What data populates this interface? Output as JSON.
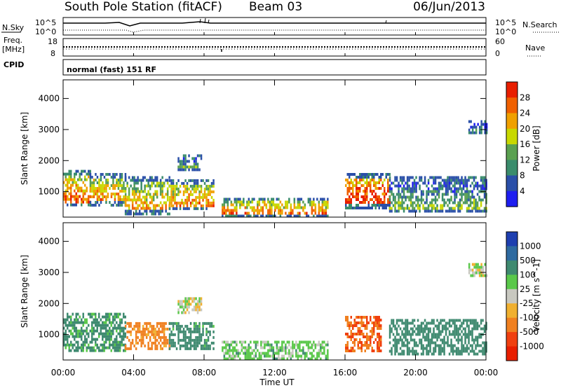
{
  "header": {
    "title": "South Pole Station (fitACF)",
    "beam": "Beam 03",
    "date": "06/Jun/2013"
  },
  "status_panels": {
    "nsky_label": "N.Sky",
    "nsearch_label": "N.Search",
    "noise_ticks": [
      "10^5",
      "10^0"
    ],
    "freq_label": "Freq.",
    "freq_unit": "[MHz]",
    "freq_ticks": [
      "18",
      "8"
    ],
    "nave_label": "Nave",
    "nave_ticks": [
      "60",
      "0"
    ],
    "cpid_label": "CPID",
    "cpid_value": "normal (fast) 151 RF"
  },
  "time_axis": {
    "label": "Time UT",
    "ticks": [
      "00:00",
      "04:00",
      "08:00",
      "12:00",
      "16:00",
      "20:00",
      "00:00"
    ]
  },
  "chart_data": [
    {
      "type": "heatmap",
      "panel": "power",
      "ylabel": "Slant Range [km]",
      "y_ticks": [
        "1000",
        "2000",
        "3000",
        "4000"
      ],
      "ylim": [
        180,
        4600
      ],
      "xlim_hours": [
        0,
        24
      ],
      "colorbar_label": "Power [dB]",
      "colorbar_ticks": [
        "4",
        "8",
        "12",
        "16",
        "20",
        "24",
        "28"
      ],
      "colorbar_colors": [
        "#1e1ef0",
        "#2a4fa8",
        "#3a8c6c",
        "#5aa050",
        "#c8d800",
        "#f0a000",
        "#f06000",
        "#e81e00"
      ],
      "regions": [
        {
          "t": [
            0.0,
            1.5
          ],
          "r": [
            550,
            1700
          ],
          "v": 22
        },
        {
          "t": [
            1.5,
            3.5
          ],
          "r": [
            600,
            1600
          ],
          "v": 20
        },
        {
          "t": [
            3.5,
            6.0
          ],
          "r": [
            300,
            1500
          ],
          "v": 18
        },
        {
          "t": [
            6.0,
            8.5
          ],
          "r": [
            450,
            1400
          ],
          "v": 20
        },
        {
          "t": [
            6.5,
            7.8
          ],
          "r": [
            1700,
            2200
          ],
          "v": 10
        },
        {
          "t": [
            9.0,
            15.0
          ],
          "r": [
            250,
            800
          ],
          "v": 20
        },
        {
          "t": [
            16.0,
            18.5
          ],
          "r": [
            500,
            1600
          ],
          "v": 26
        },
        {
          "t": [
            18.5,
            24.0
          ],
          "r": [
            350,
            1500
          ],
          "v": 10
        },
        {
          "t": [
            23.0,
            24.0
          ],
          "r": [
            2900,
            3300
          ],
          "v": 6
        }
      ]
    },
    {
      "type": "heatmap",
      "panel": "velocity",
      "ylabel": "Slant Range [km]",
      "y_ticks": [
        "1000",
        "2000",
        "3000",
        "4000"
      ],
      "ylim": [
        180,
        4600
      ],
      "xlim_hours": [
        0,
        24
      ],
      "colorbar_label": "Velocity [m s^-1]",
      "colorbar_ticks": [
        "1000",
        "500",
        "100",
        "25",
        "-25",
        "-100",
        "-500",
        "-1000"
      ],
      "colorbar_colors": [
        "#1e3fb0",
        "#2e6aa0",
        "#3f8a70",
        "#5ac84a",
        "#c8c8c0",
        "#f0b030",
        "#f08020",
        "#f04010",
        "#e81e00"
      ],
      "regions": [
        {
          "t": [
            0.0,
            3.5
          ],
          "r": [
            500,
            1700
          ],
          "v": 150
        },
        {
          "t": [
            3.5,
            6.0
          ],
          "r": [
            500,
            1400
          ],
          "v": -200
        },
        {
          "t": [
            6.5,
            7.8
          ],
          "r": [
            1700,
            2200
          ],
          "v": 0
        },
        {
          "t": [
            6.0,
            8.5
          ],
          "r": [
            500,
            1400
          ],
          "v": 200
        },
        {
          "t": [
            9.0,
            15.0
          ],
          "r": [
            250,
            800
          ],
          "v": 60
        },
        {
          "t": [
            16.0,
            18.0
          ],
          "r": [
            500,
            1600
          ],
          "v": -500
        },
        {
          "t": [
            18.5,
            24.0
          ],
          "r": [
            350,
            1500
          ],
          "v": 300
        },
        {
          "t": [
            23.0,
            24.0
          ],
          "r": [
            2900,
            3300
          ],
          "v": 0
        }
      ]
    }
  ]
}
